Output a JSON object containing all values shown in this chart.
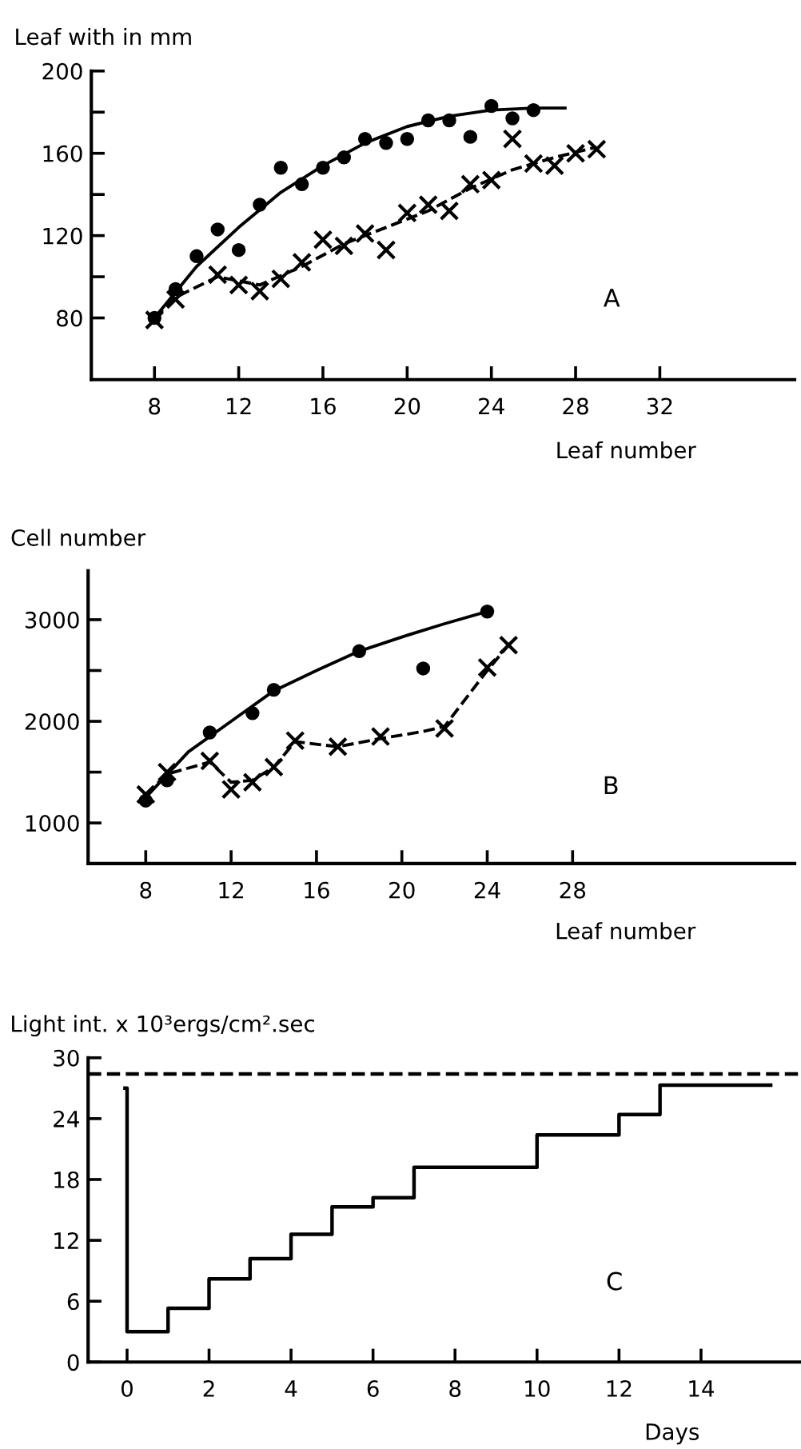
{
  "chart_data": [
    {
      "type": "scatter",
      "ylabel": "Leaf with in mm",
      "xlabel": "Leaf number",
      "annotations": [
        "A"
      ],
      "xlim": [
        5,
        38.4
      ],
      "ylim": [
        50,
        200
      ],
      "xticks": [
        8,
        12,
        16,
        20,
        24,
        28,
        32
      ],
      "yticks": [
        80,
        {
          "value": 100,
          "label": null
        },
        120,
        {
          "value": 140,
          "label": null
        },
        160,
        {
          "value": 180,
          "label": null
        },
        200
      ],
      "series": [
        {
          "type": "scatter",
          "marker": "circle",
          "color": "#000000",
          "x": [
            8,
            9,
            10,
            11,
            12,
            13,
            14,
            15,
            16,
            17,
            18,
            19,
            20,
            21,
            22,
            23,
            24,
            25,
            26
          ],
          "values": [
            80,
            94,
            110,
            123,
            113,
            135,
            153,
            145,
            153,
            158,
            167,
            165,
            167,
            176,
            176,
            168,
            183,
            177,
            181
          ]
        },
        {
          "type": "line",
          "marker": "none",
          "line_style": "solid",
          "color": "#000000",
          "x": [
            8,
            10,
            12,
            14,
            16,
            18,
            20,
            22,
            24,
            26,
            27.5
          ],
          "values": [
            80,
            105,
            124,
            141,
            154,
            165,
            173,
            178,
            181,
            182,
            182
          ]
        },
        {
          "type": "scatter",
          "marker": "cross",
          "color": "#000000",
          "x": [
            8,
            9,
            11,
            12,
            13,
            14,
            15,
            16,
            17,
            18,
            19,
            20,
            21,
            22,
            23,
            24,
            25,
            26,
            27,
            28,
            29
          ],
          "values": [
            79,
            89,
            101,
            96,
            93,
            99,
            107,
            118,
            115,
            121,
            113,
            131,
            135,
            132,
            145,
            147,
            167,
            155,
            154,
            160,
            162
          ]
        },
        {
          "type": "line",
          "marker": "none",
          "line_style": "dashed",
          "color": "#000000",
          "x": [
            8,
            9,
            11,
            13,
            15,
            17,
            19,
            21,
            23,
            25,
            27,
            29
          ],
          "values": [
            80,
            90,
            100,
            96,
            105,
            116,
            124,
            132,
            143,
            152,
            158,
            163
          ]
        }
      ]
    },
    {
      "type": "scatter",
      "ylabel": "Cell number",
      "xlabel": "Leaf number",
      "annotations": [
        "B"
      ],
      "xlim": [
        5.3,
        38.4
      ],
      "ylim": [
        600,
        3480
      ],
      "xticks": [
        8,
        12,
        16,
        20,
        24,
        28
      ],
      "yticks": [
        1000,
        {
          "value": 1500,
          "label": null
        },
        2000,
        {
          "value": 2500,
          "label": null
        },
        3000
      ],
      "series": [
        {
          "type": "scatter",
          "marker": "circle",
          "color": "#000000",
          "x": [
            8,
            9,
            11,
            13,
            14,
            18,
            21,
            24
          ],
          "values": [
            1220,
            1420,
            1890,
            2080,
            2310,
            2690,
            2520,
            3080
          ]
        },
        {
          "type": "line",
          "marker": "none",
          "line_style": "solid",
          "color": "#000000",
          "x": [
            8,
            10,
            12,
            14,
            16,
            18,
            20,
            22,
            24
          ],
          "values": [
            1250,
            1700,
            2000,
            2300,
            2500,
            2690,
            2830,
            2960,
            3080
          ]
        },
        {
          "type": "scatter",
          "marker": "cross",
          "color": "#000000",
          "x": [
            8,
            9,
            11,
            12,
            13,
            14,
            15,
            17,
            19,
            22,
            24,
            25
          ],
          "values": [
            1280,
            1500,
            1610,
            1330,
            1400,
            1550,
            1810,
            1750,
            1850,
            1930,
            2530,
            2750
          ]
        },
        {
          "type": "line",
          "marker": "none",
          "line_style": "dashed",
          "color": "#000000",
          "x": [
            8,
            9,
            11,
            12,
            13,
            14,
            15,
            17,
            19,
            21,
            22,
            24,
            25
          ],
          "values": [
            1280,
            1480,
            1600,
            1400,
            1420,
            1550,
            1800,
            1750,
            1830,
            1900,
            1950,
            2500,
            2750
          ]
        }
      ]
    },
    {
      "type": "step",
      "ylabel": "Light int. x 10³ergs/cm².sec",
      "xlabel": "Days",
      "annotations": [
        "C"
      ],
      "xlim": [
        -0.95,
        16.4
      ],
      "ylim": [
        0,
        30
      ],
      "xticks": [
        0,
        2,
        4,
        6,
        8,
        10,
        12,
        14
      ],
      "yticks": [
        0,
        6,
        12,
        18,
        24,
        30
      ],
      "ref_lines": [
        {
          "axis": "y",
          "value": 28.4,
          "color": "#000000",
          "line_style": "dashed"
        }
      ],
      "series": [
        {
          "color": "#000000",
          "x": [
            -0.05,
            0,
            1,
            2,
            3,
            4,
            5,
            6,
            7,
            10,
            12,
            13,
            15.7
          ],
          "values": [
            27,
            3,
            5.3,
            8.2,
            10.2,
            12.6,
            15.3,
            16.2,
            19.2,
            22.4,
            24.4,
            27.3,
            27.3
          ]
        }
      ]
    }
  ]
}
